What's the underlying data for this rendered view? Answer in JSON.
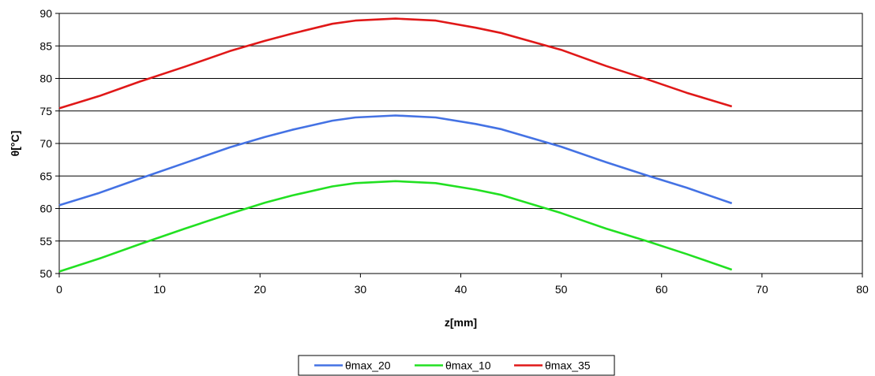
{
  "chart_data": {
    "type": "line",
    "title": "",
    "xlabel": "z[mm]",
    "ylabel": "θ[°C]",
    "xlim": [
      0,
      80
    ],
    "ylim": [
      50,
      90
    ],
    "x_ticks": [
      0,
      10,
      20,
      30,
      40,
      50,
      60,
      70,
      80
    ],
    "y_ticks": [
      50,
      55,
      60,
      65,
      70,
      75,
      80,
      85,
      90
    ],
    "grid": "horizontal",
    "legend_position": "bottom",
    "series": [
      {
        "name": "θmax_20",
        "color": "#4472E4",
        "x": [
          0,
          4,
          8,
          12.5,
          17,
          20.5,
          23.2,
          27.2,
          29.5,
          33.5,
          37.5,
          41.5,
          44,
          50,
          54.5,
          58.5,
          62.5,
          67
        ],
        "y": [
          60.5,
          62.4,
          64.6,
          67,
          69.4,
          71,
          72.1,
          73.5,
          74.0,
          74.3,
          74.0,
          73.0,
          72.2,
          69.5,
          67.1,
          65.1,
          63.2,
          60.8
        ]
      },
      {
        "name": "θmax_10",
        "color": "#22E022",
        "x": [
          0,
          4,
          8,
          12.5,
          17,
          20.5,
          23.2,
          27.2,
          29.5,
          33.5,
          37.5,
          41.5,
          44,
          50,
          54.5,
          58.5,
          62.5,
          67
        ],
        "y": [
          50.3,
          52.3,
          54.5,
          56.9,
          59.2,
          60.9,
          62.0,
          63.4,
          63.9,
          64.2,
          63.9,
          62.9,
          62.1,
          59.3,
          56.9,
          55.0,
          53.0,
          50.6
        ]
      },
      {
        "name": "θmax_35",
        "color": "#E01818",
        "x": [
          0,
          4,
          8,
          12.5,
          17,
          20.5,
          23.2,
          27.2,
          29.5,
          33.5,
          37.5,
          41.5,
          44,
          50,
          54.5,
          58.5,
          62.5,
          67
        ],
        "y": [
          75.4,
          77.3,
          79.5,
          81.8,
          84.2,
          85.8,
          86.9,
          88.4,
          88.9,
          89.2,
          88.9,
          87.8,
          87.0,
          84.4,
          81.9,
          79.9,
          77.8,
          75.7
        ]
      }
    ]
  }
}
